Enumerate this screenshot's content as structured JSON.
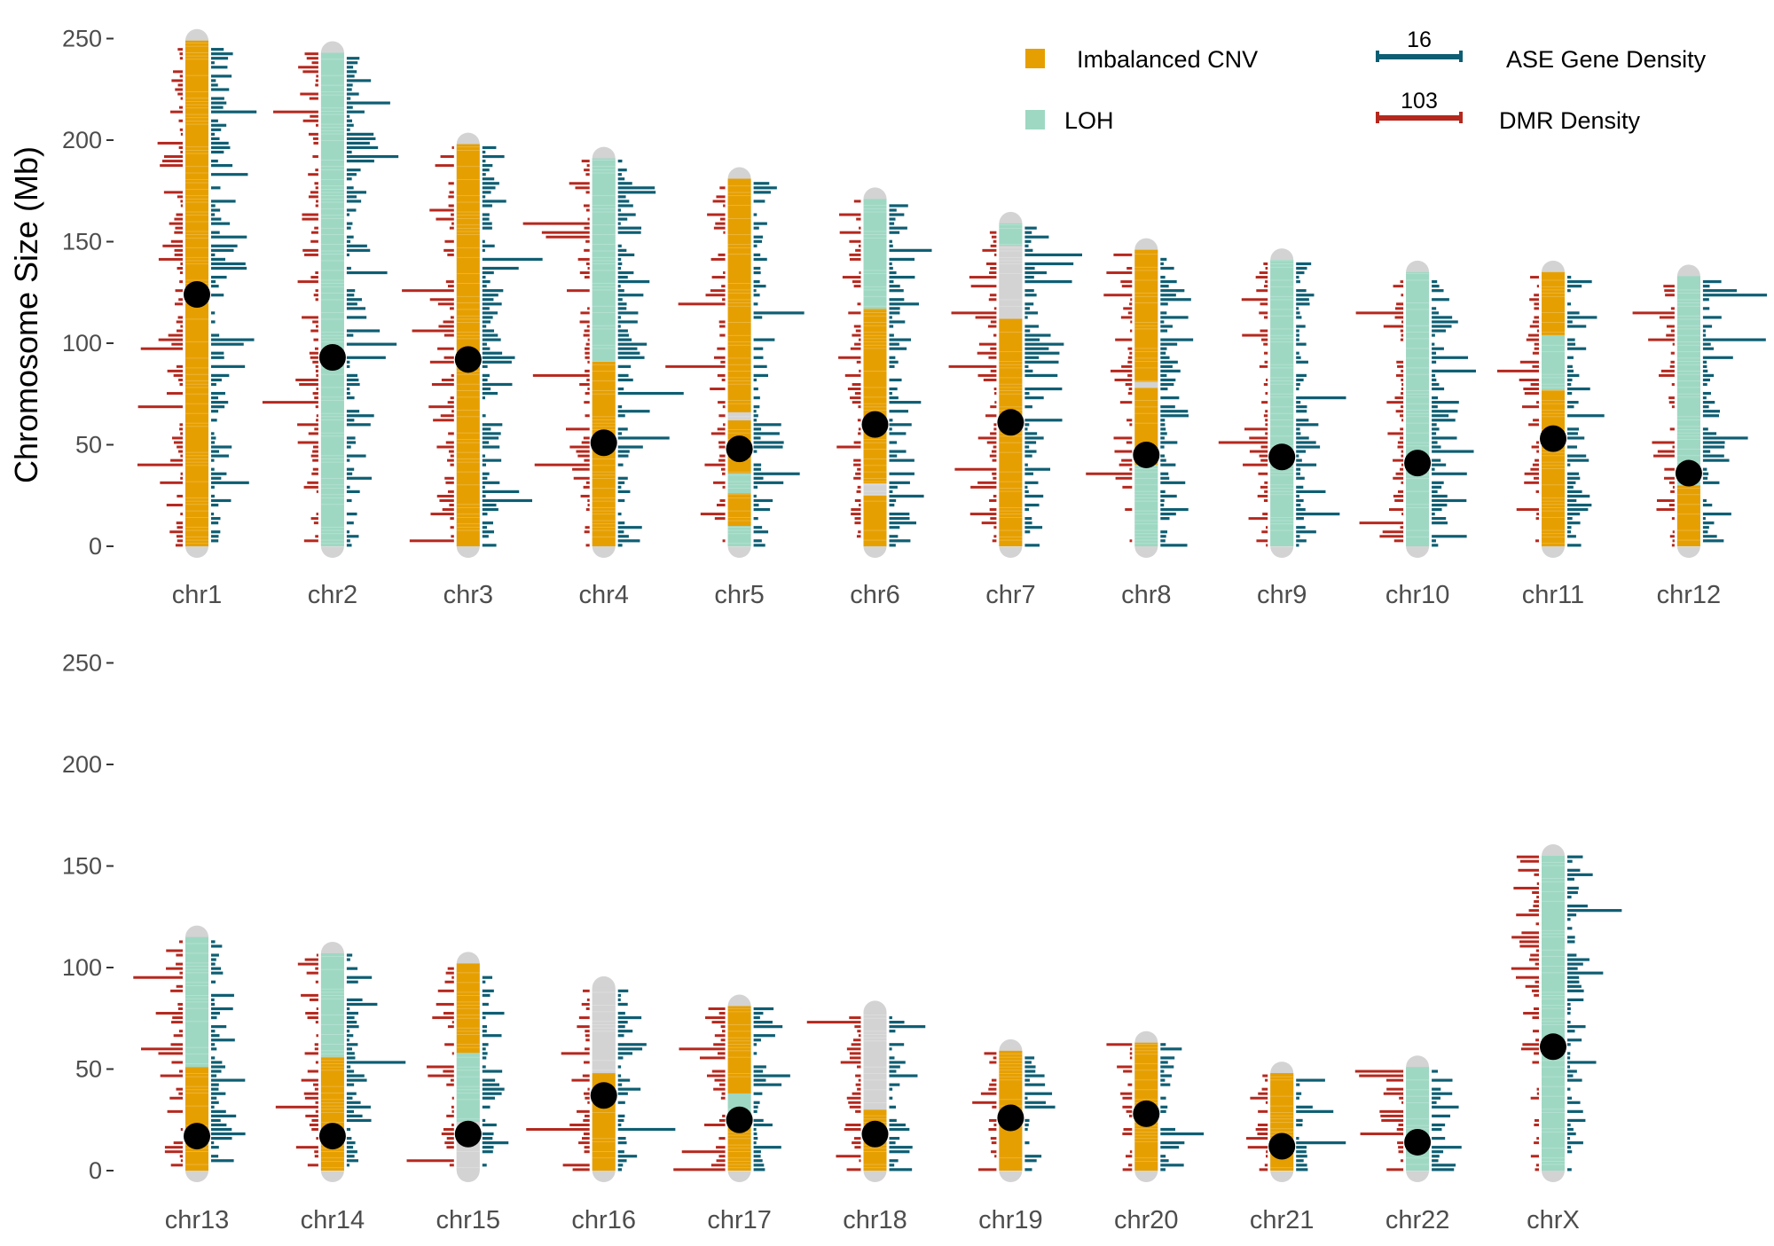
{
  "chart_data": {
    "type": "chromosome-ideogram",
    "ylabel": "Chromosome Size (Mb)",
    "yticks": [
      0,
      50,
      100,
      150,
      200,
      250
    ],
    "ylim": [
      0,
      260
    ],
    "colors": {
      "imbalanced_cnv": "#E69F00",
      "loh": "#9ED8C3",
      "neutral": "#D3D3D3",
      "ase": "#0E5E73",
      "dmr": "#B5281E",
      "centromere": "#000000"
    },
    "legend": {
      "cnv_label": "Imbalanced CNV",
      "loh_label": "LOH",
      "ase_value": "16",
      "ase_label": "ASE Gene Density",
      "dmr_value": "103",
      "dmr_label": "DMR Density"
    },
    "chromosomes": [
      {
        "name": "chr1",
        "row": 0,
        "size": 249,
        "centromere": 124,
        "segments": [
          [
            0,
            249,
            "cnv"
          ]
        ]
      },
      {
        "name": "chr2",
        "row": 0,
        "size": 243,
        "centromere": 93,
        "segments": [
          [
            0,
            243,
            "loh"
          ]
        ]
      },
      {
        "name": "chr3",
        "row": 0,
        "size": 198,
        "centromere": 92,
        "segments": [
          [
            0,
            198,
            "cnv"
          ]
        ]
      },
      {
        "name": "chr4",
        "row": 0,
        "size": 191,
        "centromere": 51,
        "segments": [
          [
            0,
            91,
            "cnv"
          ],
          [
            91,
            191,
            "loh"
          ]
        ]
      },
      {
        "name": "chr5",
        "row": 0,
        "size": 181,
        "centromere": 48,
        "segments": [
          [
            0,
            10,
            "loh"
          ],
          [
            10,
            26,
            "cnv"
          ],
          [
            26,
            36,
            "loh"
          ],
          [
            36,
            62,
            "cnv"
          ],
          [
            62,
            66,
            "neutral"
          ],
          [
            66,
            181,
            "cnv"
          ]
        ]
      },
      {
        "name": "chr6",
        "row": 0,
        "size": 171,
        "centromere": 60,
        "segments": [
          [
            0,
            25,
            "cnv"
          ],
          [
            25,
            31,
            "neutral"
          ],
          [
            31,
            117,
            "cnv"
          ],
          [
            117,
            171,
            "loh"
          ]
        ]
      },
      {
        "name": "chr7",
        "row": 0,
        "size": 159,
        "centromere": 61,
        "segments": [
          [
            0,
            112,
            "cnv"
          ],
          [
            112,
            148,
            "neutral"
          ],
          [
            148,
            159,
            "loh"
          ]
        ]
      },
      {
        "name": "chr8",
        "row": 0,
        "size": 146,
        "centromere": 45,
        "segments": [
          [
            0,
            40,
            "loh"
          ],
          [
            40,
            78,
            "cnv"
          ],
          [
            78,
            81,
            "neutral"
          ],
          [
            81,
            146,
            "cnv"
          ]
        ]
      },
      {
        "name": "chr9",
        "row": 0,
        "size": 141,
        "centromere": 44,
        "segments": [
          [
            0,
            141,
            "loh"
          ]
        ]
      },
      {
        "name": "chr10",
        "row": 0,
        "size": 135,
        "centromere": 41,
        "segments": [
          [
            0,
            135,
            "loh"
          ]
        ]
      },
      {
        "name": "chr11",
        "row": 0,
        "size": 135,
        "centromere": 53,
        "segments": [
          [
            0,
            77,
            "cnv"
          ],
          [
            77,
            104,
            "loh"
          ],
          [
            104,
            135,
            "cnv"
          ]
        ]
      },
      {
        "name": "chr12",
        "row": 0,
        "size": 133,
        "centromere": 36,
        "segments": [
          [
            0,
            30,
            "cnv"
          ],
          [
            30,
            133,
            "loh"
          ]
        ]
      },
      {
        "name": "chr13",
        "row": 1,
        "size": 115,
        "centromere": 17,
        "segments": [
          [
            0,
            51,
            "cnv"
          ],
          [
            51,
            115,
            "loh"
          ]
        ]
      },
      {
        "name": "chr14",
        "row": 1,
        "size": 107,
        "centromere": 17,
        "segments": [
          [
            0,
            56,
            "cnv"
          ],
          [
            56,
            107,
            "loh"
          ]
        ]
      },
      {
        "name": "chr15",
        "row": 1,
        "size": 102,
        "centromere": 18,
        "segments": [
          [
            0,
            24,
            "neutral"
          ],
          [
            24,
            58,
            "loh"
          ],
          [
            58,
            102,
            "cnv"
          ]
        ]
      },
      {
        "name": "chr16",
        "row": 1,
        "size": 90,
        "centromere": 37,
        "segments": [
          [
            0,
            48,
            "cnv"
          ],
          [
            48,
            90,
            "neutral"
          ]
        ]
      },
      {
        "name": "chr17",
        "row": 1,
        "size": 81,
        "centromere": 25,
        "segments": [
          [
            0,
            28,
            "cnv"
          ],
          [
            28,
            38,
            "loh"
          ],
          [
            38,
            81,
            "cnv"
          ]
        ]
      },
      {
        "name": "chr18",
        "row": 1,
        "size": 78,
        "centromere": 18,
        "segments": [
          [
            0,
            30,
            "cnv"
          ],
          [
            30,
            78,
            "neutral"
          ]
        ]
      },
      {
        "name": "chr19",
        "row": 1,
        "size": 59,
        "centromere": 26,
        "segments": [
          [
            0,
            59,
            "cnv"
          ]
        ]
      },
      {
        "name": "chr20",
        "row": 1,
        "size": 63,
        "centromere": 28,
        "segments": [
          [
            0,
            63,
            "cnv"
          ]
        ]
      },
      {
        "name": "chr21",
        "row": 1,
        "size": 48,
        "centromere": 12,
        "segments": [
          [
            0,
            48,
            "cnv"
          ]
        ]
      },
      {
        "name": "chr22",
        "row": 1,
        "size": 51,
        "centromere": 14,
        "segments": [
          [
            0,
            51,
            "loh"
          ]
        ]
      },
      {
        "name": "chrX",
        "row": 1,
        "size": 155,
        "centromere": 61,
        "segments": [
          [
            0,
            155,
            "loh"
          ]
        ]
      }
    ]
  }
}
